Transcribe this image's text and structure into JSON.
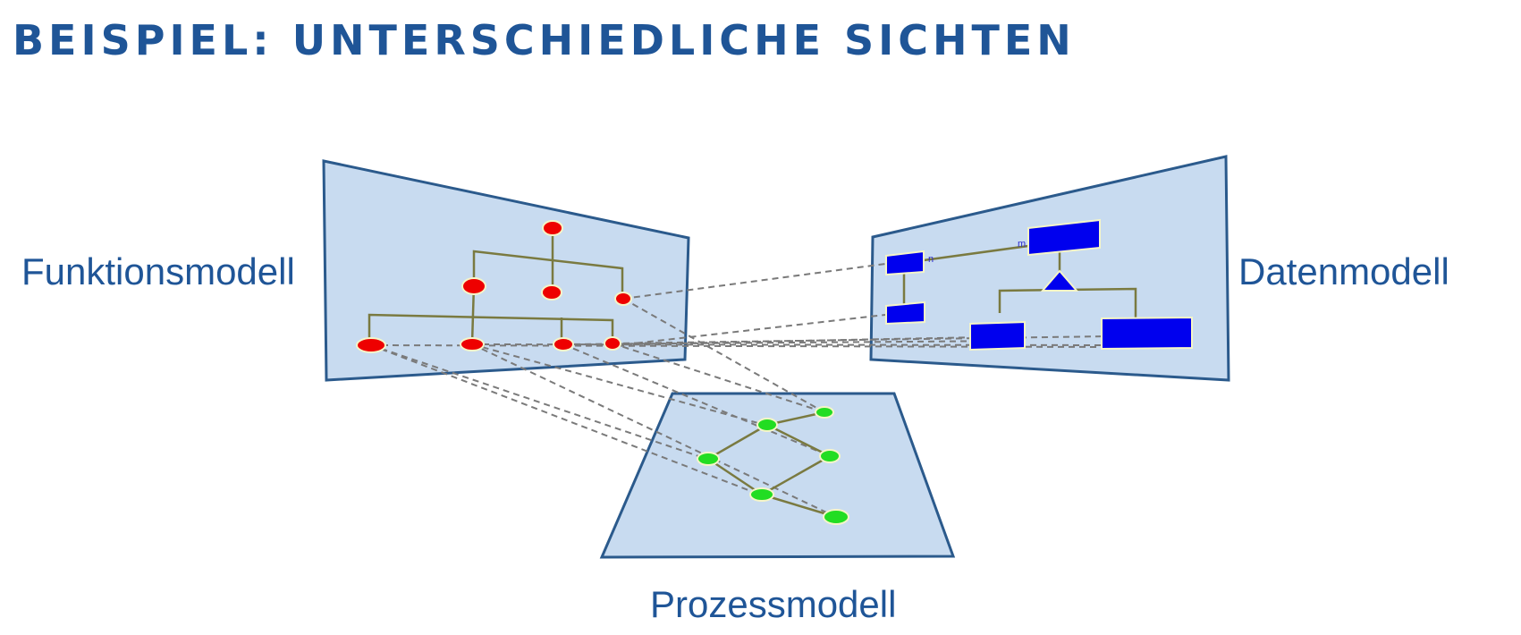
{
  "slide": {
    "title": "BEISPIEL: UNTERSCHIEDLICHE SICHTEN"
  },
  "views": {
    "function_model": "Funktionsmodell",
    "data_model": "Datenmodell",
    "process_model": "Prozessmodell"
  },
  "data_model_diagram": {
    "cardinality_n": "n",
    "cardinality_m": "m"
  },
  "colors": {
    "title": "#1f5597",
    "plane_fill": "#c8dbf0",
    "plane_border": "#2b5a8c",
    "function_nodes": "#ee0000",
    "data_entities": "#0000ee",
    "process_nodes": "#22dd22",
    "tree_lines": "#7a7a40",
    "connector_lines": "#7a7a7a"
  },
  "icons": {
    "generalization": "triangle-icon"
  }
}
